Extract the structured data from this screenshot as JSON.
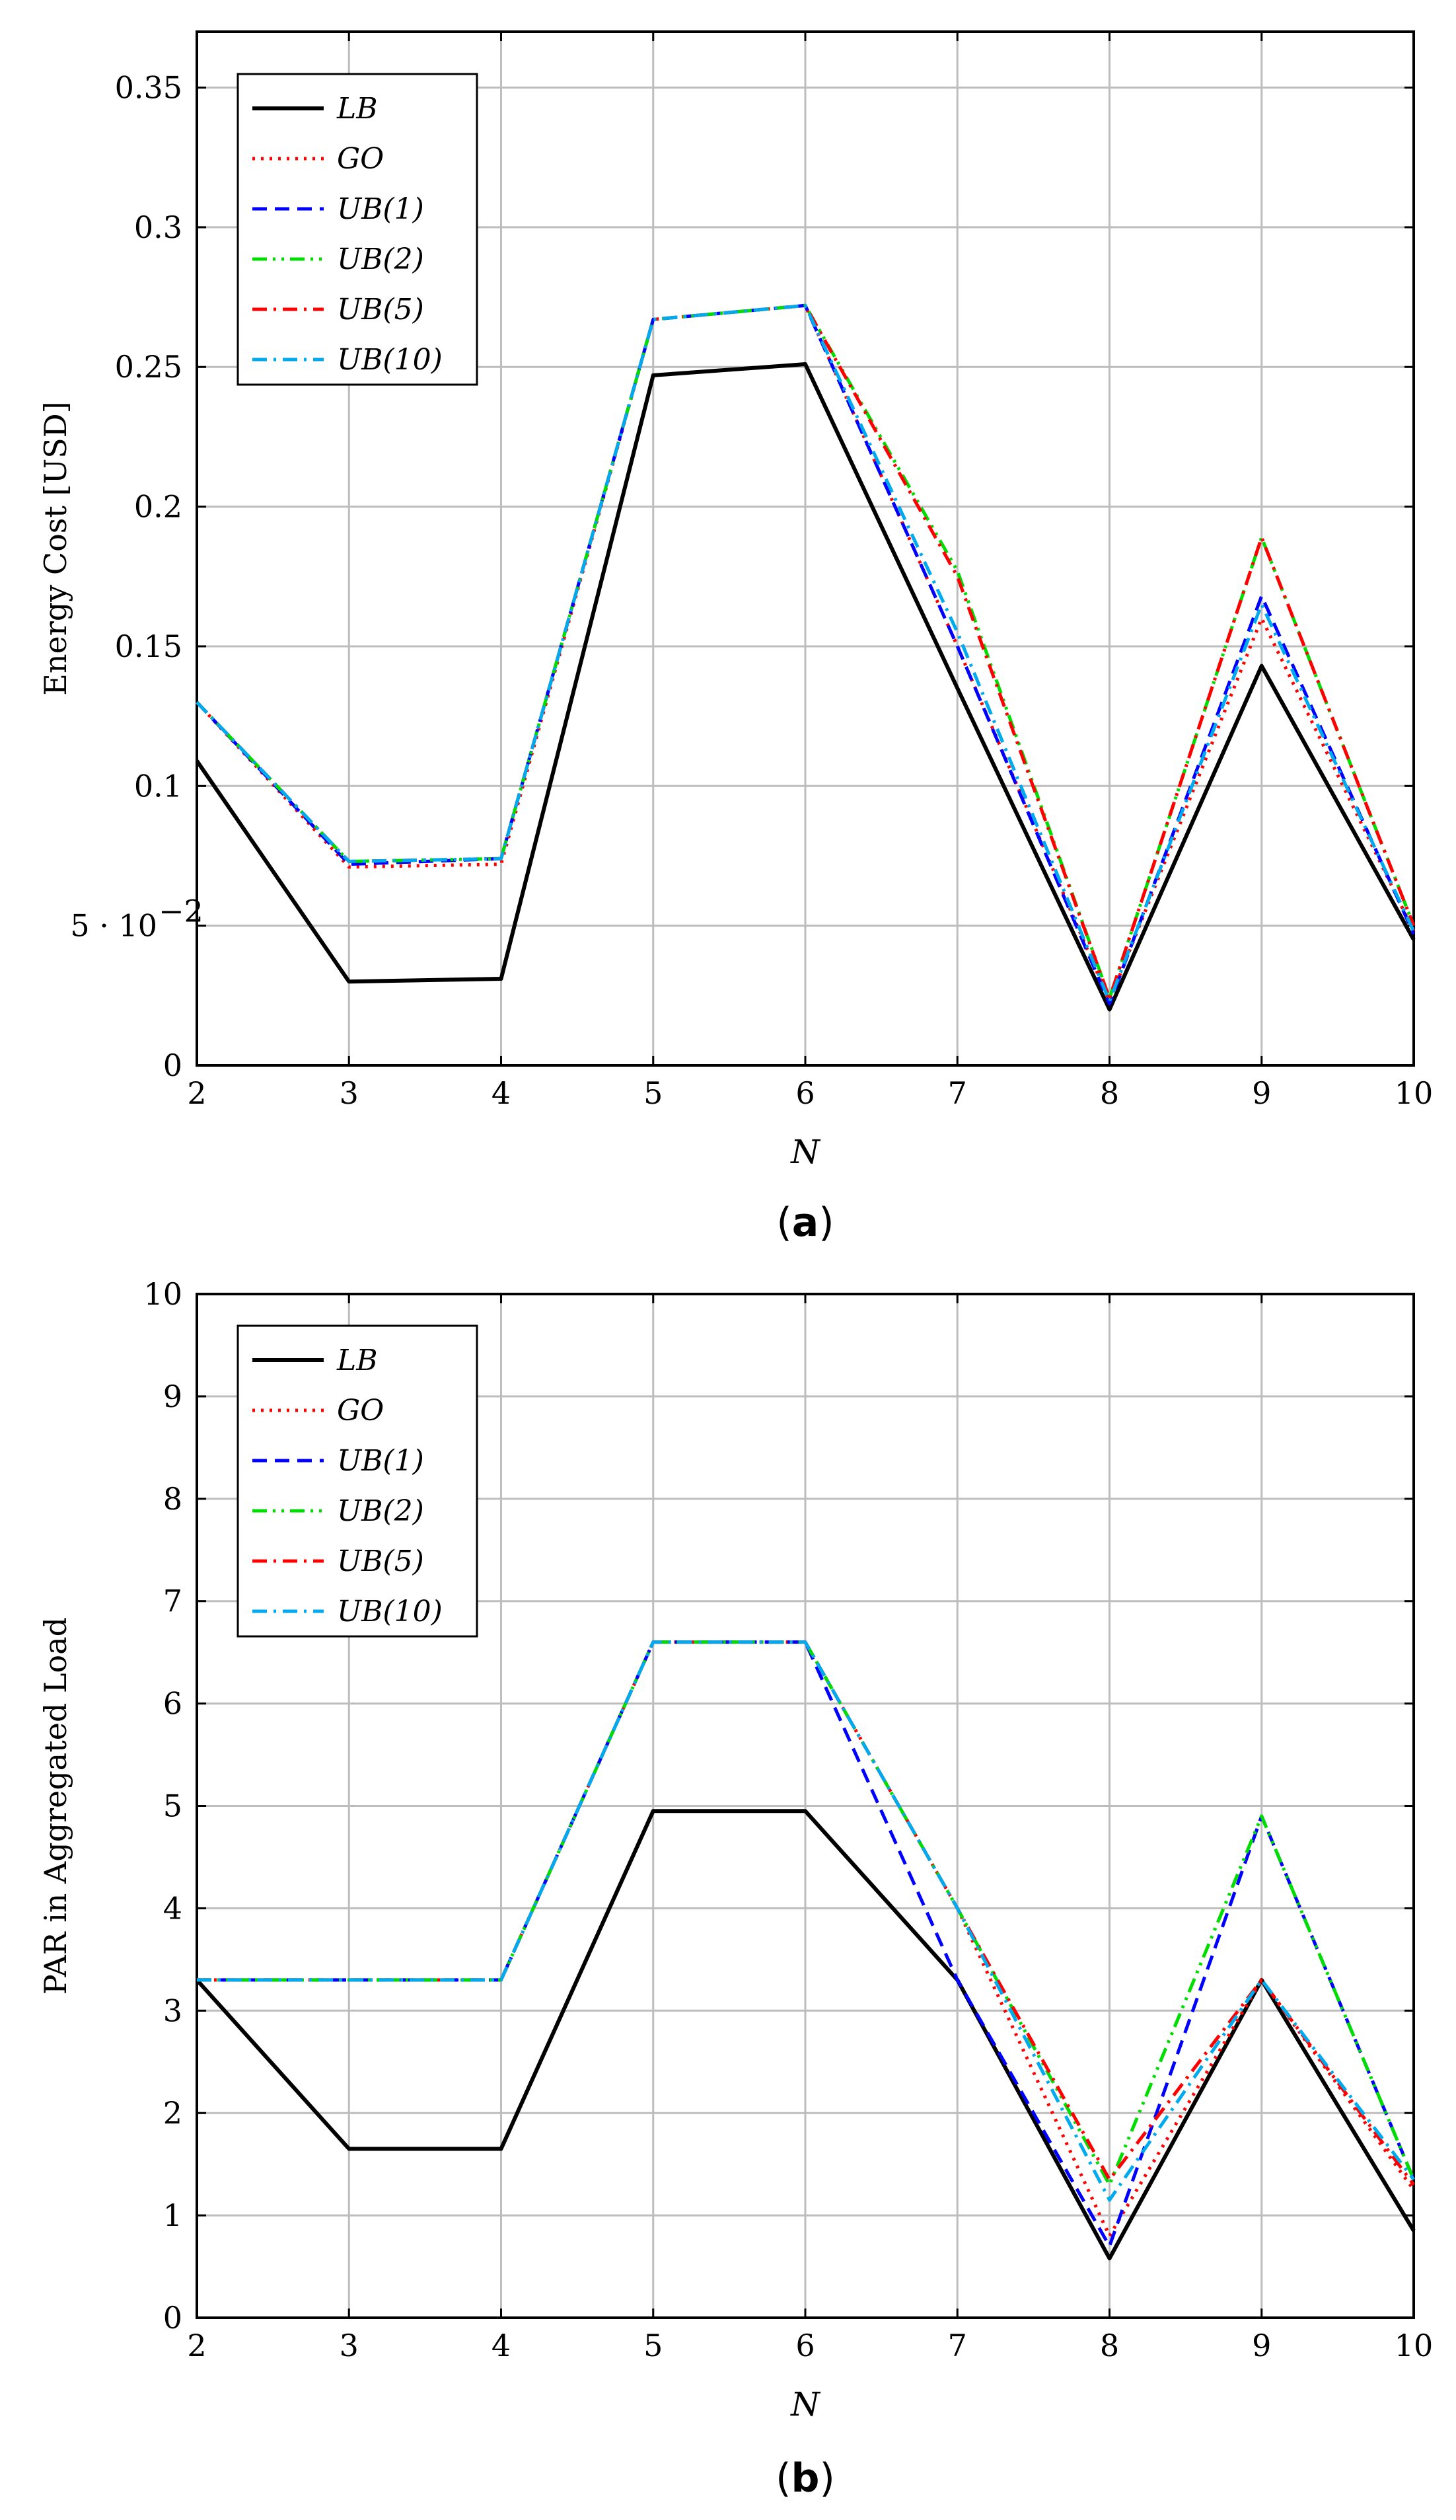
{
  "chart_data": [
    {
      "type": "line",
      "panel_label": "a",
      "title": "",
      "xlabel": "N",
      "ylabel": "Energy Cost [USD]",
      "x": [
        2,
        3,
        4,
        5,
        6,
        7,
        8,
        9,
        10
      ],
      "xlim": [
        2,
        10
      ],
      "ylim": [
        0,
        0.37
      ],
      "yticks": [
        0,
        0.05,
        0.1,
        0.15,
        0.2,
        0.25,
        0.3,
        0.35
      ],
      "ytick_labels": [
        "0",
        "5 · 10",
        "0.1",
        "0.15",
        "0.2",
        "0.25",
        "0.3",
        "0.35"
      ],
      "ytick_exponent": "−2",
      "xtick_labels": [
        "2",
        "3",
        "4",
        "5",
        "6",
        "7",
        "8",
        "9",
        "10"
      ],
      "grid": true,
      "legend_position": "top-left",
      "series": [
        {
          "name": "LB",
          "color": "#000000",
          "dash": "solid",
          "values": [
            0.109,
            0.03,
            0.031,
            0.247,
            0.251,
            0.135,
            0.02,
            0.143,
            0.045
          ]
        },
        {
          "name": "GO",
          "color": "#ff0000",
          "dash": "dotted",
          "values": [
            0.13,
            0.071,
            0.072,
            0.267,
            0.272,
            0.15,
            0.023,
            0.16,
            0.048
          ]
        },
        {
          "name": "UB(1)",
          "color": "#0000ff",
          "dash": "dashed",
          "values": [
            0.13,
            0.072,
            0.074,
            0.267,
            0.272,
            0.15,
            0.022,
            0.168,
            0.047
          ]
        },
        {
          "name": "UB(2)",
          "color": "#00dd00",
          "dash": "dashdotdot",
          "values": [
            0.13,
            0.073,
            0.074,
            0.267,
            0.272,
            0.177,
            0.024,
            0.189,
            0.05
          ]
        },
        {
          "name": "UB(5)",
          "color": "#ff0000",
          "dash": "dashdot",
          "values": [
            0.13,
            0.073,
            0.074,
            0.267,
            0.272,
            0.175,
            0.024,
            0.189,
            0.05
          ]
        },
        {
          "name": "UB(10)",
          "color": "#00aaee",
          "dash": "dashdot",
          "values": [
            0.13,
            0.073,
            0.074,
            0.267,
            0.272,
            0.155,
            0.023,
            0.165,
            0.048
          ]
        }
      ]
    },
    {
      "type": "line",
      "panel_label": "b",
      "title": "",
      "xlabel": "N",
      "ylabel": "PAR in Aggregated Load",
      "x": [
        2,
        3,
        4,
        5,
        6,
        7,
        8,
        9,
        10
      ],
      "xlim": [
        2,
        10
      ],
      "ylim": [
        0,
        10
      ],
      "yticks": [
        0,
        1,
        2,
        3,
        4,
        5,
        6,
        7,
        8,
        9,
        10
      ],
      "ytick_labels": [
        "0",
        "1",
        "2",
        "3",
        "4",
        "5",
        "6",
        "7",
        "8",
        "9",
        "10"
      ],
      "xtick_labels": [
        "2",
        "3",
        "4",
        "5",
        "6",
        "7",
        "8",
        "9",
        "10"
      ],
      "grid": true,
      "legend_position": "top-left",
      "series": [
        {
          "name": "LB",
          "color": "#000000",
          "dash": "solid",
          "values": [
            3.3,
            1.65,
            1.65,
            4.95,
            4.95,
            3.3,
            0.58,
            3.3,
            0.85
          ]
        },
        {
          "name": "GO",
          "color": "#ff0000",
          "dash": "dotted",
          "values": [
            3.3,
            3.3,
            3.3,
            6.6,
            6.6,
            4.0,
            0.8,
            3.3,
            1.25
          ]
        },
        {
          "name": "UB(1)",
          "color": "#0000ff",
          "dash": "dashed",
          "values": [
            3.3,
            3.3,
            3.3,
            6.6,
            6.6,
            3.3,
            0.7,
            4.9,
            1.35
          ]
        },
        {
          "name": "UB(2)",
          "color": "#00dd00",
          "dash": "dashdotdot",
          "values": [
            3.3,
            3.3,
            3.3,
            6.6,
            6.6,
            4.0,
            1.3,
            4.9,
            1.35
          ]
        },
        {
          "name": "UB(5)",
          "color": "#ff0000",
          "dash": "dashdot",
          "values": [
            3.3,
            3.3,
            3.3,
            6.6,
            6.6,
            4.0,
            1.35,
            3.3,
            1.3
          ]
        },
        {
          "name": "UB(10)",
          "color": "#00aaee",
          "dash": "dashdot",
          "values": [
            3.3,
            3.3,
            3.3,
            6.6,
            6.6,
            4.0,
            1.15,
            3.3,
            1.35
          ]
        }
      ]
    }
  ]
}
